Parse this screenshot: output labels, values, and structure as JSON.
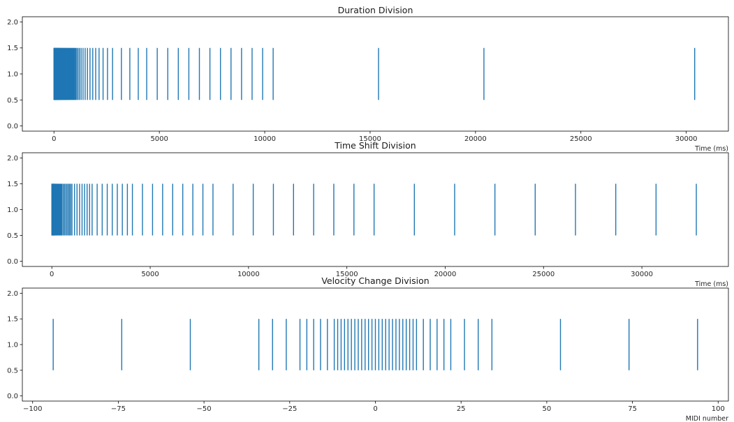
{
  "colors": {
    "series": "#1f77b4",
    "axes": "#000000",
    "background": "#ffffff"
  },
  "chart_data": [
    {
      "type": "eventplot",
      "title": "Duration Division",
      "xlabel": "Time (ms)",
      "ylabel": "",
      "xlim": [
        -1500,
        32000
      ],
      "ylim": [
        -0.1,
        2.1
      ],
      "xticks": [
        0,
        5000,
        10000,
        15000,
        20000,
        25000,
        30000
      ],
      "xtick_labels": [
        "0",
        "5000",
        "10000",
        "15000",
        "20000",
        "25000",
        "30000"
      ],
      "yticks": [
        0.0,
        0.5,
        1.0,
        1.5,
        2.0
      ],
      "ytick_labels": [
        "0.0",
        "0.5",
        "1.0",
        "1.5",
        "2.0"
      ],
      "line_offset": 1.0,
      "line_length": 1.0,
      "grid": false,
      "events": [
        0,
        8,
        16,
        24,
        32,
        40,
        50,
        60,
        70,
        80,
        92,
        104,
        116,
        128,
        142,
        156,
        170,
        185,
        200,
        216,
        232,
        250,
        268,
        286,
        305,
        325,
        345,
        366,
        388,
        410,
        433,
        456,
        480,
        505,
        530,
        556,
        583,
        610,
        638,
        667,
        696,
        726,
        757,
        788,
        820,
        853,
        886,
        920,
        955,
        990,
        1030,
        1080,
        1140,
        1210,
        1290,
        1380,
        1480,
        1590,
        1710,
        1840,
        1980,
        2140,
        2330,
        2540,
        2780,
        3200,
        3600,
        4000,
        4400,
        4900,
        5400,
        5900,
        6400,
        6900,
        7400,
        7900,
        8400,
        8900,
        9400,
        9900,
        10400,
        15400,
        20400,
        30400
      ]
    },
    {
      "type": "eventplot",
      "title": "Time Shift Division",
      "xlabel": "Time (ms)",
      "ylabel": "",
      "xlim": [
        -1500,
        34400
      ],
      "ylim": [
        -0.1,
        2.1
      ],
      "xticks": [
        0,
        5000,
        10000,
        15000,
        20000,
        25000,
        30000
      ],
      "xtick_labels": [
        "0",
        "5000",
        "10000",
        "15000",
        "20000",
        "25000",
        "30000"
      ],
      "yticks": [
        0.0,
        0.5,
        1.0,
        1.5,
        2.0
      ],
      "ytick_labels": [
        "0.0",
        "0.5",
        "1.0",
        "1.5",
        "2.0"
      ],
      "line_offset": 1.0,
      "line_length": 1.0,
      "grid": false,
      "events": [
        0,
        8,
        16,
        24,
        32,
        40,
        48,
        56,
        64,
        72,
        80,
        88,
        96,
        104,
        112,
        120,
        128,
        144,
        160,
        176,
        192,
        208,
        224,
        240,
        256,
        288,
        320,
        352,
        384,
        416,
        448,
        480,
        512,
        576,
        640,
        704,
        768,
        832,
        896,
        960,
        1024,
        1152,
        1280,
        1408,
        1536,
        1664,
        1792,
        1920,
        2048,
        2304,
        2560,
        2816,
        3072,
        3328,
        3584,
        3840,
        4096,
        4608,
        5120,
        5632,
        6144,
        6656,
        7168,
        7680,
        8192,
        9216,
        10240,
        11264,
        12288,
        13312,
        14336,
        15360,
        16384,
        18432,
        20480,
        22528,
        24576,
        26624,
        28672,
        30720,
        32768
      ]
    },
    {
      "type": "eventplot",
      "title": "Velocity Change Division",
      "xlabel": "MIDI number",
      "ylabel": "",
      "xlim": [
        -103,
        103
      ],
      "ylim": [
        -0.1,
        2.1
      ],
      "xticks": [
        -100,
        -75,
        -50,
        -25,
        0,
        25,
        50,
        75,
        100
      ],
      "xtick_labels": [
        "−100",
        "−75",
        "−50",
        "−25",
        "0",
        "25",
        "50",
        "75",
        "100"
      ],
      "yticks": [
        0.0,
        0.5,
        1.0,
        1.5,
        2.0
      ],
      "ytick_labels": [
        "0.0",
        "0.5",
        "1.0",
        "1.5",
        "2.0"
      ],
      "line_offset": 1.0,
      "line_length": 1.0,
      "grid": false,
      "events": [
        -94,
        -74,
        -54,
        -34,
        -30,
        -26,
        -22,
        -20,
        -18,
        -16,
        -14,
        -12,
        -11,
        -10,
        -9,
        -8,
        -7,
        -6,
        -5,
        -4,
        -3,
        -2,
        -1,
        0,
        1,
        2,
        3,
        4,
        5,
        6,
        7,
        8,
        9,
        10,
        11,
        12,
        14,
        16,
        18,
        20,
        22,
        26,
        30,
        34,
        54,
        74,
        94
      ]
    }
  ]
}
